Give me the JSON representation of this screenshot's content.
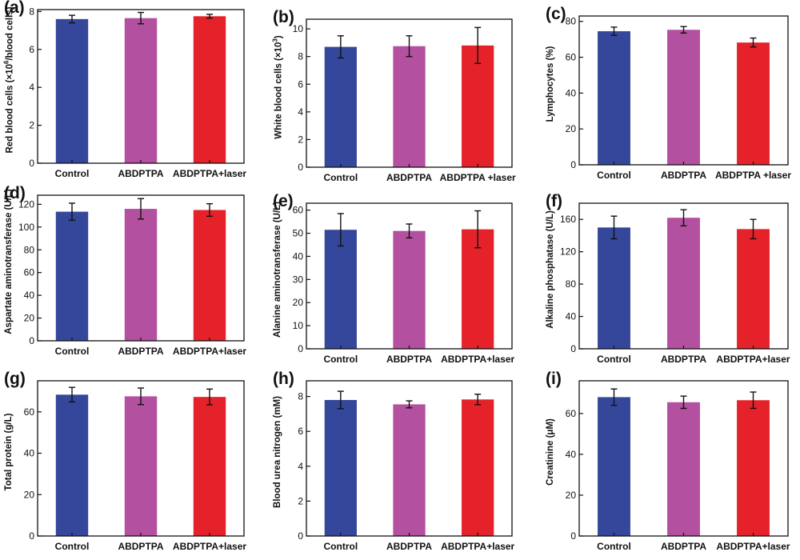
{
  "colors": {
    "control": "#35479b",
    "abdptpa": "#b3509f",
    "laser": "#e52229",
    "axis": "#111111"
  },
  "chart_data": [
    {
      "type": "bar",
      "panel": "(a)",
      "ylabel": "Red blood cells (×10",
      "ylabel_sup": "6",
      "ylabel_after": "/blood cells)",
      "categories": [
        "Control",
        "ABDPTPA",
        "ABDPTPA+laser"
      ],
      "values": [
        7.6,
        7.65,
        7.75
      ],
      "errors": [
        0.2,
        0.3,
        0.1
      ],
      "ylim": [
        0,
        8.1
      ],
      "yticks": [
        "0",
        "2",
        "4",
        "6",
        "8"
      ],
      "ytick_values": [
        0,
        2,
        4,
        6,
        8
      ]
    },
    {
      "type": "bar",
      "panel": "(b)",
      "ylabel": "White blood cells  (×10",
      "ylabel_sup": "3",
      "ylabel_after": ")",
      "categories": [
        "Control",
        "ABDPTPA",
        "ABDPTPA +laser"
      ],
      "values": [
        8.7,
        8.75,
        8.8
      ],
      "errors": [
        0.8,
        0.75,
        1.3
      ],
      "ylim": [
        0,
        10.7
      ],
      "yticks": [
        "0",
        "2",
        "4",
        "6",
        "8",
        "10"
      ],
      "ytick_values": [
        0,
        2,
        4,
        6,
        8,
        10
      ]
    },
    {
      "type": "bar",
      "panel": "(c)",
      "ylabel": "Lymphocytes (%)",
      "categories": [
        "Control",
        "ABDPTPA",
        "ABDPTPA +laser"
      ],
      "values": [
        74.5,
        75.3,
        68.2
      ],
      "errors": [
        2.3,
        1.8,
        2.5
      ],
      "ylim": [
        0,
        83
      ],
      "yticks": [
        "0",
        "20",
        "40",
        "60",
        "80"
      ],
      "ytick_values": [
        0,
        20,
        40,
        60,
        80
      ]
    },
    {
      "type": "bar",
      "panel": "(d)",
      "ylabel": "Aspartate aminotransferase (U/L)",
      "categories": [
        "Control",
        "ABDPTPA",
        "ABDPTPA+laser"
      ],
      "values": [
        113.5,
        116,
        115
      ],
      "errors": [
        7.5,
        9,
        5.5
      ],
      "ylim": [
        0,
        128
      ],
      "yticks": [
        "0",
        "20",
        "40",
        "60",
        "80",
        "100",
        "120"
      ],
      "ytick_values": [
        0,
        20,
        40,
        60,
        80,
        100,
        120
      ]
    },
    {
      "type": "bar",
      "panel": "(e)",
      "ylabel": "Alanine aminotransferase (U/L)",
      "categories": [
        "Control",
        "ABDPTPA",
        "ABDPTPA+laser"
      ],
      "values": [
        51.5,
        51,
        51.7
      ],
      "errors": [
        7,
        3,
        8
      ],
      "ylim": [
        0,
        63
      ],
      "yticks": [
        "0",
        "10",
        "20",
        "30",
        "40",
        "50",
        "60"
      ],
      "ytick_values": [
        0,
        10,
        20,
        30,
        40,
        50,
        60
      ]
    },
    {
      "type": "bar",
      "panel": "(f)",
      "ylabel": "Alkaline phosphatase (U/L)",
      "categories": [
        "Control",
        "ABDPTPA",
        "ABDPTPA+laser"
      ],
      "values": [
        150,
        162,
        148
      ],
      "errors": [
        14,
        10,
        12
      ],
      "ylim": [
        0,
        180
      ],
      "yticks": [
        "0",
        "40",
        "80",
        "120",
        "160"
      ],
      "ytick_values": [
        0,
        40,
        80,
        120,
        160
      ]
    },
    {
      "type": "bar",
      "panel": "(g)",
      "ylabel": "Total protein (g/L)",
      "categories": [
        "Control",
        "ABDPTPA",
        "ABDPTPA+laser"
      ],
      "values": [
        68.3,
        67.5,
        67.2
      ],
      "errors": [
        3.5,
        4,
        3.8
      ],
      "ylim": [
        0,
        75
      ],
      "yticks": [
        "0",
        "20",
        "40",
        "60"
      ],
      "ytick_values": [
        0,
        20,
        40,
        60
      ]
    },
    {
      "type": "bar",
      "panel": "(h)",
      "ylabel": "Blood urea nitrogen (mM)",
      "categories": [
        "Control",
        "ABDPTPA",
        "ABDPTPA+laser"
      ],
      "values": [
        7.8,
        7.55,
        7.83
      ],
      "errors": [
        0.5,
        0.2,
        0.3
      ],
      "ylim": [
        0,
        8.9
      ],
      "yticks": [
        "0",
        "2",
        "4",
        "6",
        "8"
      ],
      "ytick_values": [
        0,
        2,
        4,
        6,
        8
      ]
    },
    {
      "type": "bar",
      "panel": "(i)",
      "ylabel": "Creatinine (μM)",
      "categories": [
        "Control",
        "ABDPTPA",
        "ABDPTPA+laser"
      ],
      "values": [
        68,
        65.5,
        66.5
      ],
      "errors": [
        4,
        3,
        4
      ],
      "ylim": [
        0,
        76
      ],
      "yticks": [
        "0",
        "20",
        "40",
        "60"
      ],
      "ytick_values": [
        0,
        20,
        40,
        60
      ]
    }
  ]
}
